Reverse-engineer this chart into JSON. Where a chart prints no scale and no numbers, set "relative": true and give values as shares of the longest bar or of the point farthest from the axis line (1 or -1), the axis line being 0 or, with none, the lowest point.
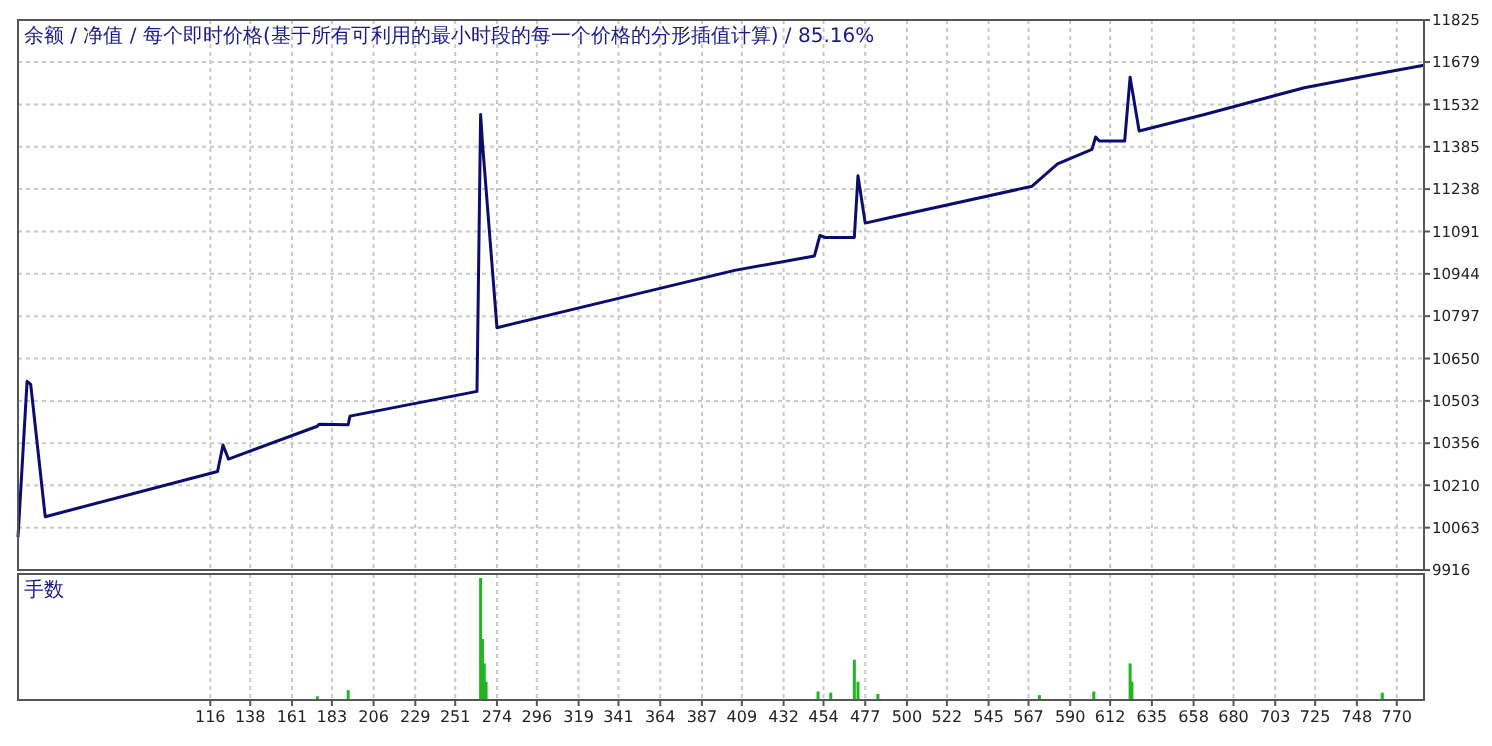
{
  "chart_data": [
    {
      "type": "line",
      "title": "余额 / 净值 / 每个即时价格(基于所有可利用的最小时段的每一个价格的分形插值计算) / 85.16%",
      "xlim": [
        10,
        785
      ],
      "xticks": [
        116,
        138,
        161,
        183,
        206,
        229,
        251,
        274,
        296,
        319,
        341,
        364,
        387,
        409,
        432,
        454,
        477,
        500,
        522,
        545,
        567,
        590,
        612,
        635,
        658,
        680,
        703,
        725,
        748,
        770
      ],
      "ylim": [
        9916,
        11825
      ],
      "yticks": [
        9916,
        10063,
        10210,
        10356,
        10503,
        10650,
        10797,
        10944,
        11091,
        11238,
        11385,
        11532,
        11679,
        11825
      ],
      "tick_labels": "y",
      "grid": true,
      "series": [
        {
          "color": "#0c0c6e",
          "x": [
            10,
            15,
            17,
            25,
            120,
            123,
            126,
            175,
            176,
            192,
            193,
            263,
            265,
            266,
            274,
            405,
            449,
            452,
            455,
            471,
            473,
            477,
            492,
            569,
            583,
            602,
            604,
            606,
            620,
            623,
            628,
            664,
            719,
            755,
            785
          ],
          "values": [
            10030,
            10571,
            10560,
            10101,
            10258,
            10350,
            10301,
            10415,
            10422,
            10420,
            10450,
            10536,
            11497,
            11400,
            10757,
            10956,
            11006,
            11077,
            11070,
            11070,
            11284,
            11120,
            11141,
            11248,
            11326,
            11376,
            11419,
            11405,
            11405,
            11626,
            11440,
            11497,
            11590,
            11633,
            11668
          ]
        }
      ]
    },
    {
      "type": "bar",
      "title": "手数",
      "relative": true,
      "xlim": [
        10,
        785
      ],
      "xticks": [
        116,
        138,
        161,
        183,
        206,
        229,
        251,
        274,
        296,
        319,
        341,
        364,
        387,
        409,
        432,
        454,
        477,
        500,
        522,
        545,
        567,
        590,
        612,
        635,
        658,
        680,
        703,
        725,
        748,
        770
      ],
      "tick_labels": "x",
      "grid": "x",
      "x": [
        175,
        192,
        265,
        266,
        267,
        268,
        451,
        458,
        471,
        473,
        484,
        573,
        603,
        623,
        624,
        762
      ],
      "series": [
        {
          "color": "#22b422",
          "values": [
            0.03,
            0.08,
            1,
            0.5,
            0.3,
            0.15,
            0.07,
            0.06,
            0.33,
            0.15,
            0.05,
            0.04,
            0.07,
            0.3,
            0.15,
            0.06
          ]
        }
      ]
    }
  ]
}
